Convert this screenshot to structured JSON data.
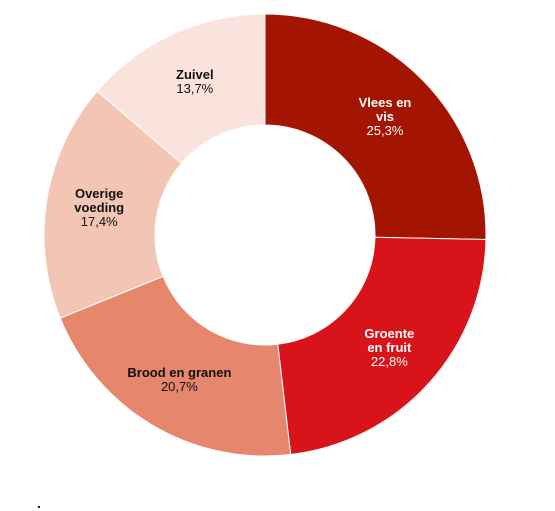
{
  "chart_data": {
    "type": "pie",
    "donut": true,
    "title": "",
    "start_angle_deg": 0,
    "direction": "clockwise",
    "legend": "none",
    "slices": [
      {
        "name": "Vlees en vis",
        "name_lines": [
          "Vlees en",
          "vis"
        ],
        "value": 25.3,
        "value_label": "25,3%",
        "color": "#a31500",
        "label_color": "#ffffff"
      },
      {
        "name": "Groente en fruit",
        "name_lines": [
          "Groente",
          "en fruit"
        ],
        "value": 22.8,
        "value_label": "22,8%",
        "color": "#d8141a",
        "label_color": "#ffffff"
      },
      {
        "name": "Brood en granen",
        "name_lines": [
          "Brood en granen"
        ],
        "value": 20.7,
        "value_label": "20,7%",
        "color": "#e5866d",
        "label_color": "#111111"
      },
      {
        "name": "Overige voeding",
        "name_lines": [
          "Overige",
          "voeding"
        ],
        "value": 17.4,
        "value_label": "17,4%",
        "color": "#f3c5b5",
        "label_color": "#111111"
      },
      {
        "name": "Zuivel",
        "name_lines": [
          "Zuivel"
        ],
        "value": 13.7,
        "value_label": "13,7%",
        "color": "#fae3dc",
        "label_color": "#111111"
      }
    ]
  },
  "footnote": "."
}
